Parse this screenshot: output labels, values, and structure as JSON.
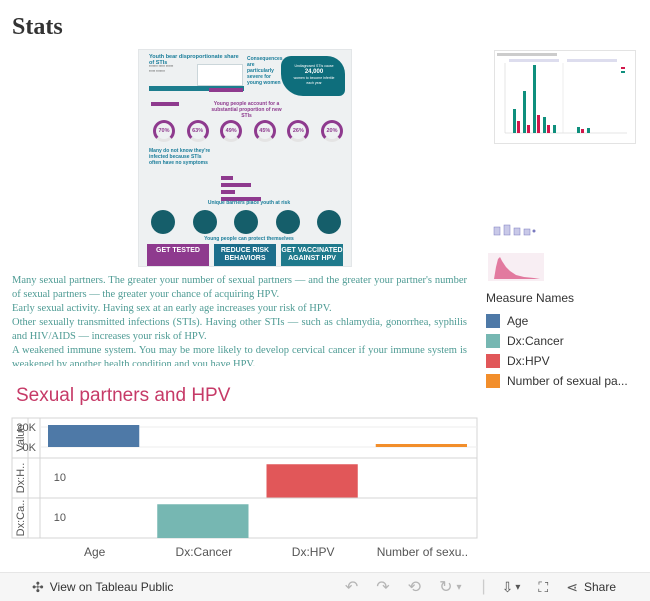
{
  "page_title": "Stats",
  "infographic": {
    "headline": "Youth bear disproportionate share of STIs",
    "consequences": "Consequences are particularly severe for young women",
    "map_intro": "Undiagnosed STIs cause",
    "map_number": "24,000",
    "map_caption": "women to become infertile each year",
    "subhead": "Young people account for a substantial proportion of new STIs",
    "rings": [
      "70%",
      "63%",
      "49%",
      "45%",
      "26%",
      "20%"
    ],
    "unaware": "Many do not know they're infected because STIs often have no symptoms",
    "barriers": "Unique barriers place youth at risk",
    "protect": "Young people can protect themselves",
    "cta": [
      "GET TESTED",
      "REDUCE RISK BEHAVIORS",
      "GET VACCINATED AGAINST HPV"
    ]
  },
  "article": {
    "paragraphs": [
      "Many sexual partners. The greater your number of sexual partners — and the greater your partner's number of sexual partners — the greater your chance of acquiring HPV.",
      "Early sexual activity. Having sex at an early age increases your risk of HPV.",
      "Other sexually transmitted infections (STIs). Having other STIs — such as chlamydia, gonorrhea, syphilis and HIV/AIDS — increases your risk of HPV.",
      "A weakened immune system. You may be more likely to develop cervical cancer if your immune system is weakened by another health condition and you have HPV."
    ]
  },
  "legend": {
    "title": "Measure Names",
    "items": [
      {
        "label": "Age",
        "color": "#4e79a7"
      },
      {
        "label": "Dx:Cancer",
        "color": "#76b7b2"
      },
      {
        "label": "Dx:HPV",
        "color": "#e15759"
      },
      {
        "label": "Number of sexual pa...",
        "color": "#f28e2b"
      }
    ]
  },
  "chart_data": {
    "type": "bar",
    "title": "Sexual partners and HPV",
    "categories": [
      "Age",
      "Dx:Cancer",
      "Dx:HPV",
      "Number of sexu.."
    ],
    "panes": [
      {
        "label": "Value",
        "ticks": [
          "20K",
          "0K"
        ],
        "ylim": [
          0,
          25000
        ]
      },
      {
        "label": "Dx:H..",
        "ticks": [
          "10"
        ],
        "ylim": [
          0,
          16
        ]
      },
      {
        "label": "Dx:Ca..",
        "ticks": [
          "10"
        ],
        "ylim": [
          0,
          16
        ]
      }
    ],
    "series": [
      {
        "name": "Age",
        "pane": 0,
        "category": 0,
        "value": 22000,
        "color": "#4e79a7"
      },
      {
        "name": "Number of sexual pa...",
        "pane": 0,
        "category": 3,
        "value": 850,
        "color": "#f28e2b"
      },
      {
        "name": "Dx:HPV",
        "pane": 1,
        "category": 2,
        "value": 15,
        "color": "#e15759"
      },
      {
        "name": "Dx:Cancer",
        "pane": 2,
        "category": 1,
        "value": 15,
        "color": "#76b7b2"
      }
    ]
  },
  "toolbar": {
    "view_label": "View on Tableau Public",
    "share_label": "Share",
    "undo_icon": "undo-icon",
    "redo_icon": "redo-icon",
    "revert_icon": "revert-icon",
    "refresh_icon": "refresh-icon",
    "download_icon": "download-icon",
    "fullscreen_icon": "fullscreen-icon",
    "share_icon": "share-icon",
    "tableau_icon": "tableau-logo-icon"
  }
}
